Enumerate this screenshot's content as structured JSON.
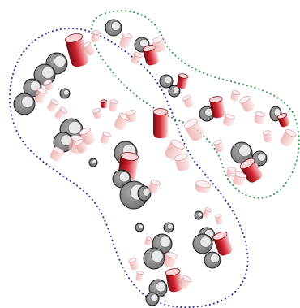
{
  "colors": {
    "background": "#ffffff",
    "cluster_a_outline": "#2a2aa0",
    "cluster_b_outline": "#2e9a4a",
    "cylinder_red": "#b01020",
    "cylinder_pink": "#f3c4c4",
    "cylinder_grey": "#8a8a8a",
    "rim": "#1a1a1a"
  },
  "clusters": [
    {
      "id": "cluster-a",
      "outline_style": "dotted",
      "outline_color": "blue"
    },
    {
      "id": "cluster-b",
      "outline_style": "dotted",
      "outline_color": "green"
    }
  ]
}
